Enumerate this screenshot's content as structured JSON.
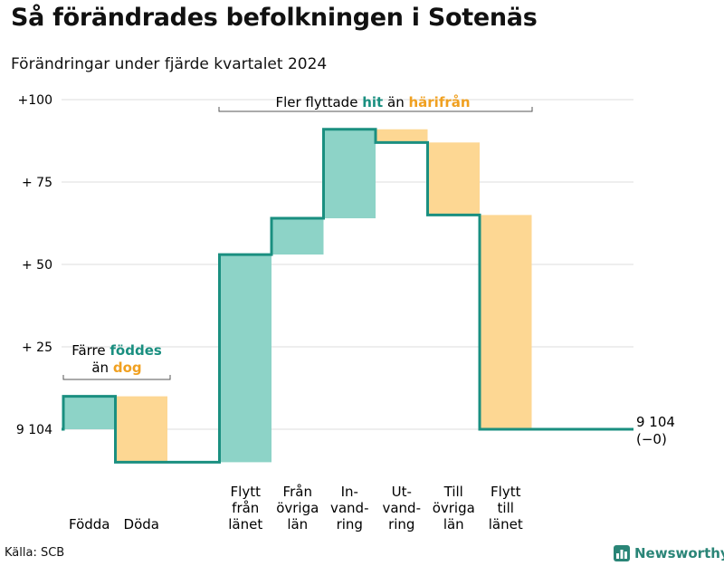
{
  "title": "Så förändrades befolkningen i Sotenäs",
  "subtitle": "Förändringar under fjärde kvartalet 2024",
  "source": "Källa: SCB",
  "brand": {
    "name": "Newsworthy",
    "icon": "bar-chart-logo-icon"
  },
  "colors": {
    "increase": "#8dd3c7",
    "decrease": "#fdd793",
    "line": "#1a8f80",
    "hit": "#1a8f80",
    "harifran": "#f0a020",
    "grid": "#dddddd",
    "bracket": "#555555"
  },
  "annotations": {
    "fodda_doda": {
      "line1": "Färre",
      "line1_em": "föddes",
      "line2": "än",
      "line2_em": "dog"
    },
    "flytt": {
      "pre": "Fler flyttade",
      "hit": "hit",
      "mid": "än",
      "harifran": "härifrån"
    }
  },
  "end_label": {
    "value": "9 104",
    "change": "(−0)"
  },
  "chart_data": {
    "type": "waterfall",
    "base_value": 9104,
    "base_label": "9 104",
    "yticks": [
      {
        "value": 0,
        "label": "9 104"
      },
      {
        "value": 25,
        "label": "+ 25"
      },
      {
        "value": 50,
        "label": "+ 50"
      },
      {
        "value": 75,
        "label": "+ 75"
      },
      {
        "value": 100,
        "label": "+100"
      }
    ],
    "ylim": [
      -15,
      100
    ],
    "steps": [
      {
        "label": [
          "Födda"
        ],
        "start": 0,
        "end": 10,
        "kind": "increase"
      },
      {
        "label": [
          "Döda"
        ],
        "start": 10,
        "end": -10,
        "kind": "decrease"
      },
      {
        "label": [],
        "start": -10,
        "end": -10,
        "kind": "flat"
      },
      {
        "label": [
          "Flytt",
          "från",
          "länet"
        ],
        "start": -10,
        "end": 53,
        "kind": "increase"
      },
      {
        "label": [
          "Från",
          "övriga",
          "län"
        ],
        "start": 53,
        "end": 64,
        "kind": "increase"
      },
      {
        "label": [
          "In-",
          "vand-",
          "ring"
        ],
        "start": 64,
        "end": 91,
        "kind": "increase"
      },
      {
        "label": [
          "Ut-",
          "vand-",
          "ring"
        ],
        "start": 91,
        "end": 87,
        "kind": "decrease"
      },
      {
        "label": [
          "Till",
          "övriga",
          "län"
        ],
        "start": 87,
        "end": 65,
        "kind": "decrease"
      },
      {
        "label": [
          "Flytt",
          "till",
          "länet"
        ],
        "start": 65,
        "end": 0,
        "kind": "decrease"
      }
    ],
    "end_value": 0
  }
}
